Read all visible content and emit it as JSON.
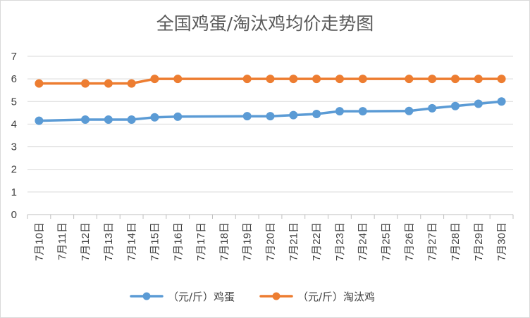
{
  "chart_data": {
    "type": "line",
    "title": "全国鸡蛋/淘汰鸡均价走势图",
    "categories": [
      "7月10日",
      "7月11日",
      "7月12日",
      "7月13日",
      "7月14日",
      "7月15日",
      "7月16日",
      "7月17日",
      "7月18日",
      "7月19日",
      "7月20日",
      "7月21日",
      "7月22日",
      "7月23日",
      "7月24日",
      "7月25日",
      "7月26日",
      "7月27日",
      "7月28日",
      "7月29日",
      "7月30日"
    ],
    "ylim": [
      0,
      7
    ],
    "yticks": [
      "0",
      "1",
      "2",
      "3",
      "4",
      "5",
      "6",
      "7"
    ],
    "grid": true,
    "legend_position": "bottom",
    "series": [
      {
        "name": "（元/斤）鸡蛋",
        "color": "#5b9bd5",
        "values": [
          4.15,
          null,
          4.2,
          4.2,
          4.2,
          4.3,
          4.33,
          null,
          null,
          4.35,
          4.35,
          4.4,
          4.45,
          4.57,
          4.57,
          null,
          4.58,
          4.7,
          4.8,
          4.9,
          5.0
        ]
      },
      {
        "name": "（元/斤）淘汰鸡",
        "color": "#ed7d31",
        "values": [
          5.8,
          null,
          5.8,
          5.8,
          5.8,
          6.0,
          6.0,
          null,
          null,
          6.0,
          6.0,
          6.0,
          6.0,
          6.0,
          6.0,
          null,
          6.0,
          6.0,
          6.0,
          6.0,
          6.0
        ]
      }
    ]
  }
}
